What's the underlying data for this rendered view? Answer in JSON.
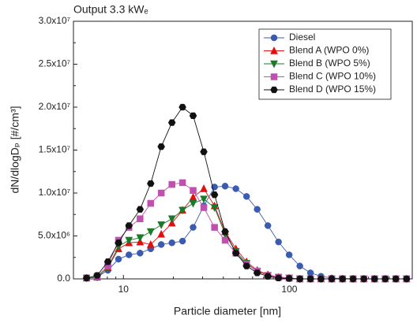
{
  "chart_data": {
    "type": "line",
    "title": "Output 3.3 kWₑ",
    "xlabel": "Particle diameter [nm]",
    "ylabel": "dN/dlogDₚ [#/cm³]",
    "xscale": "log",
    "xlim": [
      5,
      550
    ],
    "xticks": [
      10,
      100
    ],
    "xminorticks": [
      6,
      7,
      8,
      9,
      20,
      30,
      40,
      50,
      60,
      70,
      80,
      90,
      200,
      300,
      400,
      500
    ],
    "ylim": [
      0,
      30000000.0
    ],
    "yticks": [
      {
        "value": 0,
        "label": "0.0"
      },
      {
        "value": 5000000.0,
        "label": "5.0x10⁶"
      },
      {
        "value": 10000000.0,
        "label": "1.0x10⁷"
      },
      {
        "value": 15000000.0,
        "label": "1.5x10⁷"
      },
      {
        "value": 20000000.0,
        "label": "2.0x10⁷"
      },
      {
        "value": 25000000.0,
        "label": "2.5x10⁷"
      },
      {
        "value": 30000000.0,
        "label": "3.0x10⁷"
      }
    ],
    "yminorticks": [
      2500000.0,
      7500000.0,
      12500000.0,
      17500000.0,
      22500000.0,
      27500000.0
    ],
    "legend": "upper right",
    "x": [
      6.0,
      6.95,
      8.06,
      9.34,
      10.8,
      12.6,
      14.6,
      16.9,
      19.6,
      22.7,
      26.3,
      30.5,
      35.4,
      41.0,
      47.6,
      55.2,
      64.0,
      74.2,
      86.0,
      99.7,
      115.6,
      134,
      155,
      180,
      209,
      242,
      281,
      326,
      378,
      438,
      508
    ],
    "series": [
      {
        "name": "Diesel",
        "color": "#3a5bb0",
        "marker": "circle",
        "values": [
          100000.0,
          200000.0,
          1000000.0,
          2300000.0,
          2800000.0,
          3000000.0,
          3500000.0,
          4000000.0,
          4200000.0,
          4400000.0,
          6000000.0,
          8500000.0,
          10700000.0,
          10800000.0,
          10500000.0,
          9600000.0,
          8100000.0,
          6200000.0,
          4300000.0,
          2800000.0,
          1500000.0,
          700000.0,
          300000.0,
          100000.0,
          50000.0,
          0,
          0,
          0,
          0,
          0,
          0
        ]
      },
      {
        "name": "Blend A (WPO 0%)",
        "color": "#e01010",
        "marker": "triangle",
        "values": [
          100000.0,
          200000.0,
          1300000.0,
          3500000.0,
          4200000.0,
          4300000.0,
          4000000.0,
          5200000.0,
          6500000.0,
          8000000.0,
          9500000.0,
          10500000.0,
          8500000.0,
          5500000.0,
          3500000.0,
          2000000.0,
          1000000.0,
          500000.0,
          200000.0,
          100000.0,
          0,
          0,
          0,
          0,
          0,
          0,
          0,
          0,
          0,
          0,
          0
        ]
      },
      {
        "name": "Blend B (WPO 5%)",
        "color": "#1a7a2a",
        "marker": "triangle-down",
        "values": [
          100000.0,
          200000.0,
          1300000.0,
          3800000.0,
          4500000.0,
          4800000.0,
          5500000.0,
          6300000.0,
          7000000.0,
          8000000.0,
          8800000.0,
          9300000.0,
          8300000.0,
          5200000.0,
          3200000.0,
          1800000.0,
          900000.0,
          400000.0,
          200000.0,
          100000.0,
          0,
          0,
          0,
          0,
          0,
          0,
          0,
          0,
          0,
          0,
          0
        ]
      },
      {
        "name": "Blend C (WPO 10%)",
        "color": "#c050b0",
        "marker": "square",
        "values": [
          100000.0,
          300000.0,
          1500000.0,
          4500000.0,
          6000000.0,
          7000000.0,
          8800000.0,
          10000000.0,
          11000000.0,
          11200000.0,
          10300000.0,
          8300000.0,
          6000000.0,
          4500000.0,
          3000000.0,
          1700000.0,
          900000.0,
          400000.0,
          200000.0,
          100000.0,
          0,
          0,
          0,
          0,
          0,
          0,
          0,
          0,
          0,
          0,
          0
        ]
      },
      {
        "name": "Blend D (WPO 15%)",
        "color": "#111111",
        "marker": "hexagon",
        "values": [
          100000.0,
          400000.0,
          2000000.0,
          4200000.0,
          6200000.0,
          8100000.0,
          11100000.0,
          15400000.0,
          18200000.0,
          20000000.0,
          19000000.0,
          14800000.0,
          9800000.0,
          5500000.0,
          3000000.0,
          1500000.0,
          700000.0,
          300000.0,
          100000.0,
          50000.0,
          0,
          0,
          0,
          0,
          0,
          0,
          0,
          0,
          0,
          0,
          0
        ]
      }
    ]
  }
}
